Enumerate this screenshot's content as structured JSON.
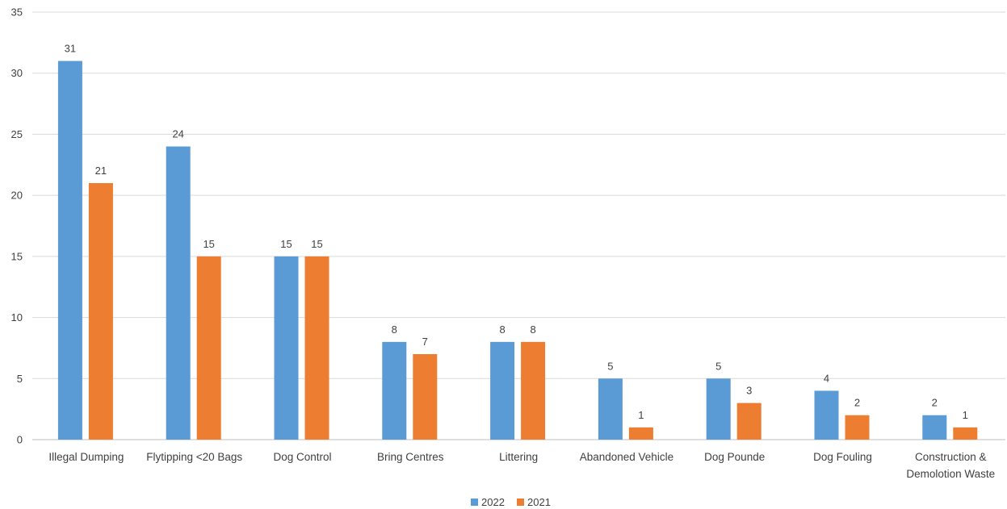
{
  "chart_data": {
    "type": "bar",
    "categories": [
      [
        "Illegal Dumping"
      ],
      [
        "Flytipping <20 Bags"
      ],
      [
        "Dog Control"
      ],
      [
        "Bring Centres"
      ],
      [
        "Littering"
      ],
      [
        "Abandoned Vehicle"
      ],
      [
        "Dog Pounde"
      ],
      [
        "Dog Fouling"
      ],
      [
        "Construction &",
        "Demolotion Waste"
      ]
    ],
    "series": [
      {
        "name": "2022",
        "color": "#5B9BD5",
        "values": [
          31,
          24,
          15,
          8,
          8,
          5,
          5,
          4,
          2
        ]
      },
      {
        "name": "2021",
        "color": "#ED7D31",
        "values": [
          21,
          15,
          15,
          7,
          8,
          1,
          3,
          2,
          1
        ]
      }
    ],
    "ylim": [
      0,
      35
    ],
    "yticks": [
      0,
      5,
      10,
      15,
      20,
      25,
      30,
      35
    ],
    "grid": true,
    "legend_position": "bottom",
    "data_labels": true,
    "title": "",
    "xlabel": "",
    "ylabel": ""
  }
}
